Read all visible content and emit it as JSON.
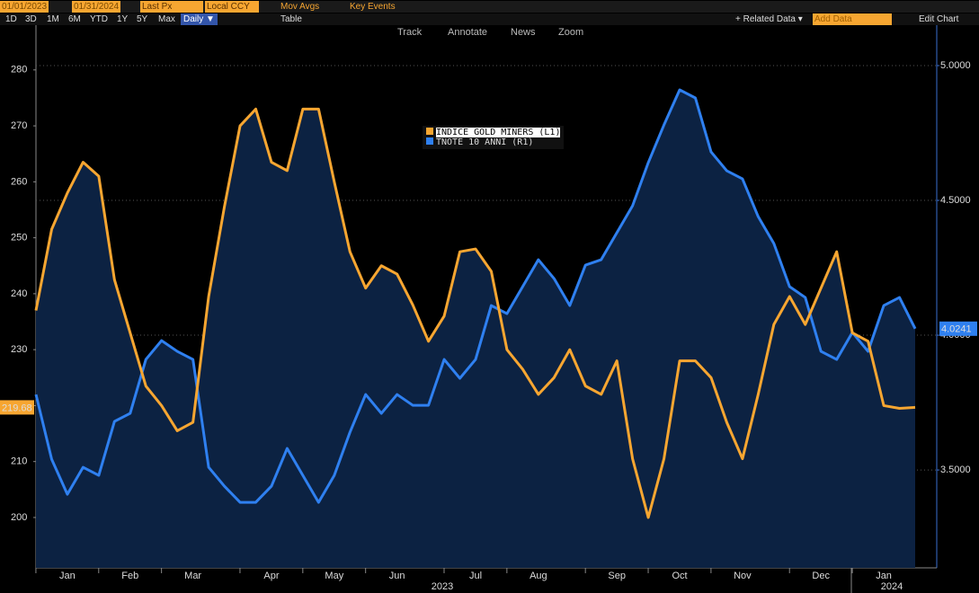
{
  "toolbar": {
    "start_date": "01/01/2023",
    "end_date": "01/31/2024",
    "price": "Last Px",
    "currency": "Local CCY",
    "mov_avgs": "Mov Avgs",
    "key_events": "Key Events",
    "ranges": [
      "1D",
      "3D",
      "1M",
      "6M",
      "YTD",
      "1Y",
      "5Y",
      "Max"
    ],
    "frequency": "Daily ▼",
    "table": "Table",
    "related": "+ Related Data ▾",
    "add_data": "Add Data",
    "edit_chart": "Edit Chart",
    "tools": [
      "Track",
      "Annotate",
      "News",
      "Zoom"
    ]
  },
  "chart_data": {
    "type": "line",
    "categories": [
      null,
      null,
      "Jan",
      null,
      null,
      null,
      "Feb",
      null,
      null,
      null,
      "Mar",
      null,
      null,
      null,
      null,
      "Apr",
      null,
      null,
      null,
      "May",
      null,
      null,
      null,
      "Jun",
      null,
      null,
      null,
      null,
      "Jul",
      null,
      null,
      null,
      "Aug",
      null,
      null,
      null,
      null,
      "Sep",
      null,
      null,
      null,
      "Oct",
      null,
      null,
      null,
      "Nov",
      null,
      null,
      null,
      null,
      "Dec",
      null,
      null,
      null,
      "Jan",
      null,
      null
    ],
    "year_labels": [
      "2023",
      "2024"
    ],
    "series": [
      {
        "name": "INDICE GOLD MINERS (L1)",
        "color": "#f7a631",
        "axis": "y",
        "last_value_label": "219.68",
        "values": [
          237,
          251.5,
          258,
          263.5,
          261,
          242.5,
          233,
          223.5,
          220,
          215.5,
          217,
          239.5,
          255.5,
          270,
          273,
          263.5,
          262,
          273,
          273,
          260,
          247.5,
          241,
          245,
          243.5,
          238,
          231.5,
          236,
          247.5,
          248,
          244,
          230,
          226.5,
          222,
          225,
          230,
          223.5,
          222,
          228,
          210.5,
          200,
          210.5,
          228,
          228,
          225,
          217,
          210.5,
          222,
          234.5,
          239.5,
          234.5,
          241,
          247.5,
          233,
          231.5,
          220,
          219.5,
          219.68
        ]
      },
      {
        "name": "TNOTE 10 ANNI (R1)",
        "color": "#2f80f0",
        "axis": "y2",
        "last_value_label": "4.0241",
        "values": [
          3.78,
          3.54,
          3.41,
          3.51,
          3.48,
          3.68,
          3.71,
          3.91,
          3.98,
          3.94,
          3.91,
          3.51,
          3.44,
          3.38,
          3.38,
          3.44,
          3.58,
          3.48,
          3.38,
          3.48,
          3.64,
          3.78,
          3.71,
          3.78,
          3.74,
          3.74,
          3.91,
          3.84,
          3.91,
          4.11,
          4.08,
          4.18,
          4.28,
          4.21,
          4.11,
          4.26,
          4.28,
          4.38,
          4.48,
          4.64,
          4.78,
          4.91,
          4.88,
          4.68,
          4.61,
          4.58,
          4.44,
          4.34,
          4.18,
          4.14,
          3.94,
          3.91,
          4.01,
          3.94,
          4.11,
          4.14,
          4.0241
        ]
      }
    ],
    "ylim": [
      191,
      288
    ],
    "yticks": [
      200,
      210,
      220,
      230,
      240,
      250,
      260,
      270,
      280
    ],
    "y2lim": [
      3.137,
      5.15
    ],
    "y2ticks": [
      {
        "value": 3.5,
        "label": "3.5000"
      },
      {
        "value": 4,
        "label": "4.0000"
      },
      {
        "value": 4.5,
        "label": "4.5000"
      },
      {
        "value": 5,
        "label": "5.0000"
      }
    ],
    "area_color": "#0c2242",
    "grid": true
  }
}
